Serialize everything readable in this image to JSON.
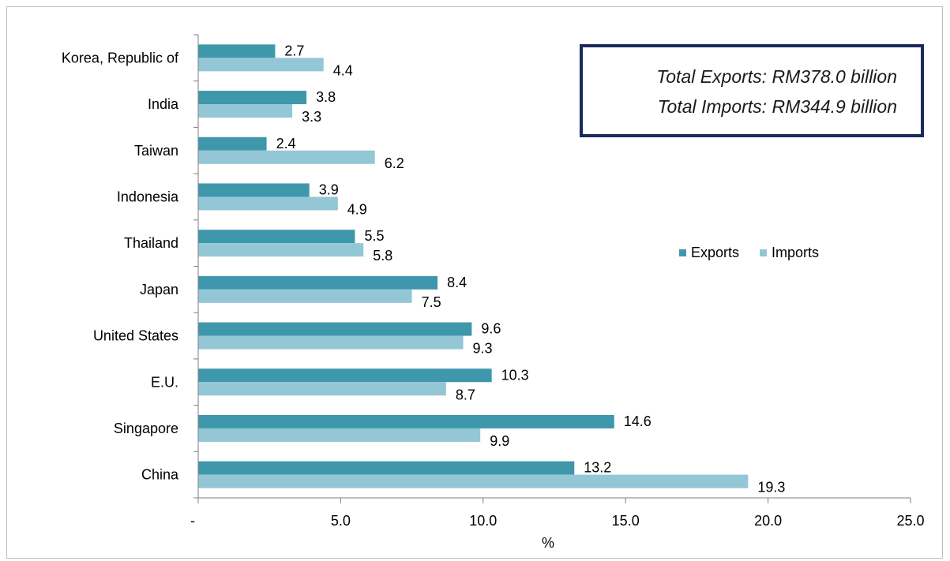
{
  "chart_data": {
    "type": "bar",
    "orientation": "horizontal",
    "categories": [
      "Korea, Republic of",
      "India",
      "Taiwan",
      "Indonesia",
      "Thailand",
      "Japan",
      "United States",
      "E.U.",
      "Singapore",
      "China"
    ],
    "series": [
      {
        "name": "Exports",
        "color": "#3f97ab",
        "values": [
          2.7,
          3.8,
          2.4,
          3.9,
          5.5,
          8.4,
          9.6,
          10.3,
          14.6,
          13.2
        ]
      },
      {
        "name": "Imports",
        "color": "#93c7d6",
        "values": [
          4.4,
          3.3,
          6.2,
          4.9,
          5.8,
          7.5,
          9.3,
          8.7,
          9.9,
          19.3
        ]
      }
    ],
    "value_labels": {
      "Exports": [
        "2.7",
        "3.8",
        "2.4",
        "3.9",
        "5.5",
        "8.4",
        "9.6",
        "10.3",
        "14.6",
        "13.2"
      ],
      "Imports": [
        "4.4",
        "3.3",
        "6.2",
        "4.9",
        "5.8",
        "7.5",
        "9.3",
        "8.7",
        "9.9",
        "19.3"
      ]
    },
    "x_ticks": [
      0,
      5,
      10,
      15,
      20,
      25
    ],
    "x_tick_labels": [
      "-",
      "5.0",
      "10.0",
      "15.0",
      "20.0",
      "25.0"
    ],
    "xlabel": "%",
    "ylabel": "",
    "xlim": [
      0,
      25
    ],
    "grid": false,
    "legend_position": "right"
  },
  "annotation": {
    "total_exports": "Total Exports: RM378.0 billion",
    "total_imports": "Total Imports: RM344.9 billion"
  }
}
